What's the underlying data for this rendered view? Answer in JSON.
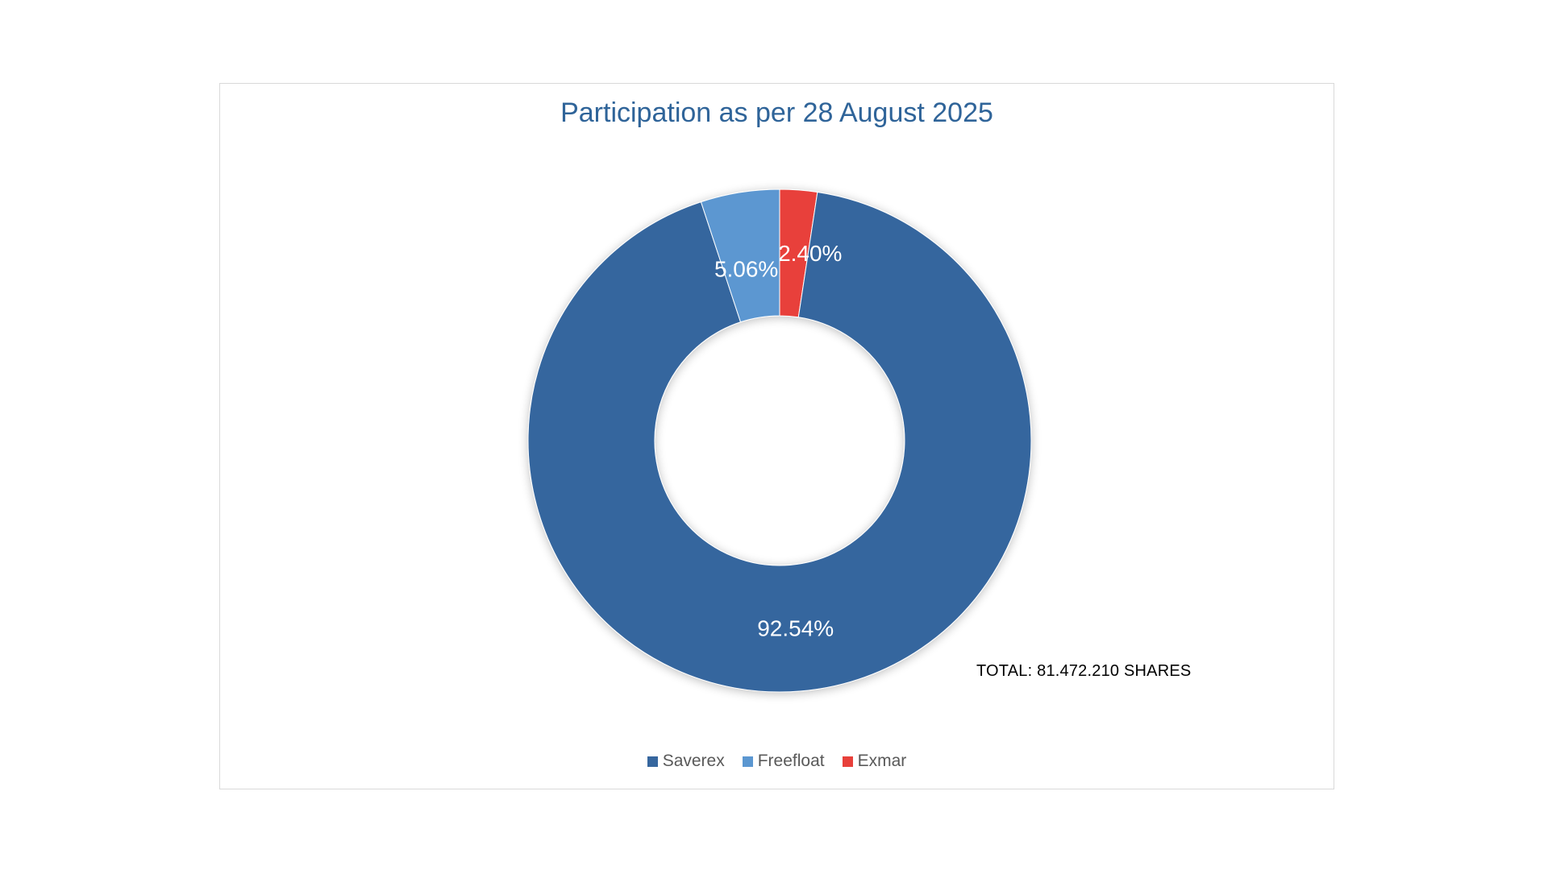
{
  "chart_data": {
    "type": "pie",
    "variant": "donut",
    "title": "Participation as per 28 August 2025",
    "annotation": "TOTAL: 81.472.210 SHARES",
    "start_angle_deg": 0,
    "direction": "clockwise",
    "legend_position": "bottom",
    "slices": [
      {
        "label": "Exmar",
        "value": 2.4,
        "display": "2.40%",
        "color": "#e8403a"
      },
      {
        "label": "Saverex",
        "value": 92.54,
        "display": "92.54%",
        "color": "#36669e"
      },
      {
        "label": "Freefloat",
        "value": 5.06,
        "display": "5.06%",
        "color": "#5b97d1"
      }
    ],
    "legend": [
      {
        "label": "Saverex",
        "color": "#36669e"
      },
      {
        "label": "Freefloat",
        "color": "#5b97d1"
      },
      {
        "label": "Exmar",
        "color": "#e8403a"
      }
    ]
  }
}
